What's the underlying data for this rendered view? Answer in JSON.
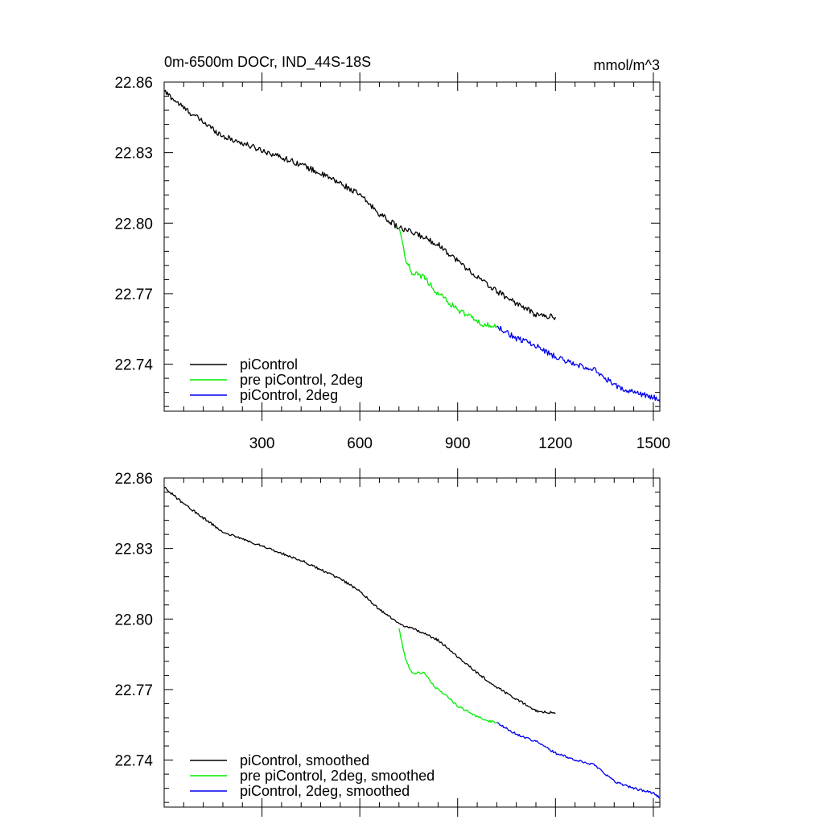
{
  "title_left": "0m-6500m DOCr, IND_44S-18S",
  "title_right": "mmol/m^3",
  "colors": {
    "black": "#000000",
    "green": "#00ee00",
    "blue": "#0000ee"
  },
  "chart_data": [
    {
      "type": "line",
      "panel": "top",
      "xlim": [
        0,
        1520
      ],
      "ylim": [
        22.72,
        22.86
      ],
      "x_ticks": [
        300,
        600,
        900,
        1200,
        1500
      ],
      "x_tick_labels": [
        "300",
        "600",
        "900",
        "1200",
        "1500"
      ],
      "y_ticks": [
        22.86,
        22.83,
        22.8,
        22.77,
        22.74
      ],
      "y_tick_labels": [
        "22.86",
        "22.83",
        "22.80",
        "22.77",
        "22.74"
      ],
      "legend": "bottom-left",
      "series": [
        {
          "name": "piControl",
          "color": "#000000",
          "noise": 0.0012,
          "x": [
            1,
            60,
            120,
            180,
            240,
            300,
            360,
            420,
            480,
            540,
            600,
            660,
            720,
            780,
            840,
            900,
            960,
            1020,
            1080,
            1140,
            1200
          ],
          "y": [
            22.856,
            22.849,
            22.843,
            22.837,
            22.834,
            22.831,
            22.828,
            22.825,
            22.821,
            22.817,
            22.812,
            22.804,
            22.798,
            22.795,
            22.791,
            22.784,
            22.777,
            22.771,
            22.766,
            22.761,
            22.76
          ]
        },
        {
          "name": "pre piControl, 2deg",
          "color": "#00ee00",
          "noise": 0.0012,
          "x": [
            720,
            740,
            760,
            800,
            830,
            860,
            900,
            940,
            980,
            1020
          ],
          "y": [
            22.798,
            22.785,
            22.779,
            22.777,
            22.771,
            22.768,
            22.763,
            22.76,
            22.757,
            22.756
          ]
        },
        {
          "name": "piControl, 2deg",
          "color": "#0000ee",
          "noise": 0.0012,
          "x": [
            1020,
            1080,
            1140,
            1200,
            1260,
            1320,
            1380,
            1440,
            1500,
            1520
          ],
          "y": [
            22.756,
            22.751,
            22.748,
            22.743,
            22.74,
            22.738,
            22.731,
            22.728,
            22.726,
            22.724
          ]
        }
      ]
    },
    {
      "type": "line",
      "panel": "bottom",
      "xlim": [
        0,
        1520
      ],
      "ylim": [
        22.72,
        22.86
      ],
      "x_ticks": [
        300,
        600,
        900,
        1200,
        1500
      ],
      "y_ticks": [
        22.86,
        22.83,
        22.8,
        22.77,
        22.74
      ],
      "y_tick_labels": [
        "22.86",
        "22.83",
        "22.80",
        "22.77",
        "22.74"
      ],
      "legend": "bottom-left",
      "series": [
        {
          "name": "piControl, smoothed",
          "color": "#000000",
          "noise": 0.0005,
          "x": [
            1,
            60,
            120,
            180,
            240,
            300,
            360,
            420,
            480,
            540,
            600,
            660,
            720,
            780,
            840,
            900,
            960,
            1020,
            1080,
            1140,
            1200
          ],
          "y": [
            22.856,
            22.849,
            22.843,
            22.837,
            22.834,
            22.831,
            22.828,
            22.825,
            22.821,
            22.817,
            22.812,
            22.804,
            22.798,
            22.795,
            22.791,
            22.784,
            22.777,
            22.771,
            22.766,
            22.761,
            22.76
          ]
        },
        {
          "name": "pre piControl, 2deg, smoothed",
          "color": "#00ee00",
          "noise": 0.0005,
          "x": [
            720,
            740,
            760,
            800,
            830,
            860,
            900,
            940,
            980,
            1020
          ],
          "y": [
            22.796,
            22.783,
            22.777,
            22.777,
            22.771,
            22.768,
            22.763,
            22.76,
            22.757,
            22.756
          ]
        },
        {
          "name": "piControl, 2deg, smoothed",
          "color": "#0000ee",
          "noise": 0.0005,
          "x": [
            1020,
            1080,
            1140,
            1200,
            1260,
            1320,
            1380,
            1440,
            1500,
            1520
          ],
          "y": [
            22.756,
            22.751,
            22.748,
            22.743,
            22.74,
            22.738,
            22.731,
            22.728,
            22.726,
            22.724
          ]
        }
      ]
    }
  ]
}
